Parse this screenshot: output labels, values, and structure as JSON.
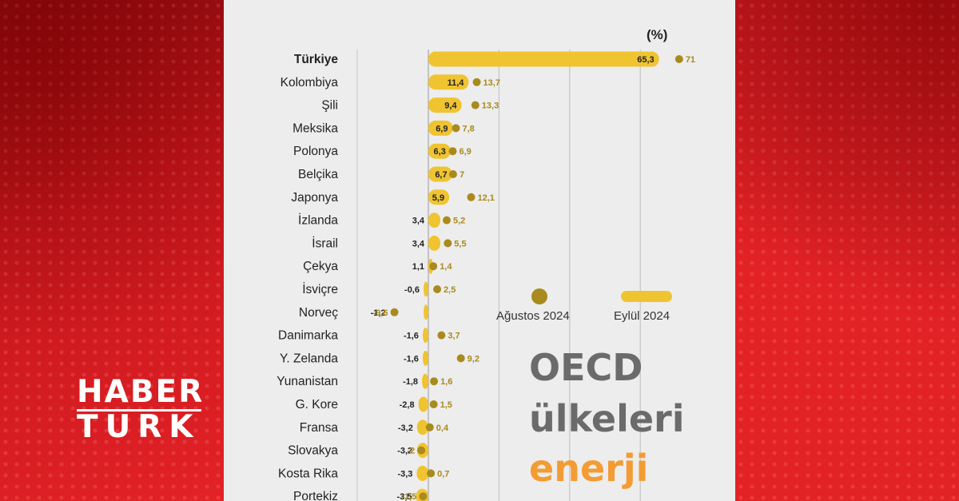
{
  "brand": {
    "line1": "HABER",
    "line2": "TURK"
  },
  "headline": {
    "line1": "OECD",
    "line2": "ülkeleri",
    "line3": "enerji"
  },
  "colors": {
    "bar": "#f0c431",
    "dot": "#a88a1e",
    "accent_title": "#f39c33",
    "title_grey": "#6b6b6b"
  },
  "legend": {
    "dot_label": "Ağustos 2024",
    "bar_label": "Eylül 2024"
  },
  "chart_data": {
    "type": "bar",
    "orientation": "horizontal",
    "unit_label": "(%)",
    "categories": [
      "Türkiye",
      "Kolombiya",
      "Şili",
      "Meksika",
      "Polonya",
      "Belçika",
      "Japonya",
      "İzlanda",
      "İsrail",
      "Çekya",
      "İsviçre",
      "Norveç",
      "Danimarka",
      "Y. Zelanda",
      "Yunanistan",
      "G. Kore",
      "Fransa",
      "Slovakya",
      "Kosta Rika",
      "Portekiz"
    ],
    "series": [
      {
        "name": "Eylül 2024",
        "mark": "bar",
        "values": [
          65.3,
          11.4,
          9.4,
          6.9,
          6.3,
          6.7,
          5.9,
          3.4,
          3.4,
          1.1,
          -0.6,
          -1.2,
          -1.6,
          -1.6,
          -1.8,
          -2.8,
          -3.2,
          -3.2,
          -3.3,
          -3.5
        ]
      },
      {
        "name": "Ağustos 2024",
        "mark": "dot",
        "values": [
          71,
          13.7,
          13.3,
          7.8,
          6.9,
          7,
          12.1,
          5.2,
          5.5,
          1.4,
          2.5,
          -9.6,
          3.7,
          9.2,
          1.6,
          1.5,
          0.4,
          -2,
          0.7,
          -1.5
        ]
      }
    ],
    "bar_labels": [
      "65,3",
      "11,4",
      "9,4",
      "6,9",
      "6,3",
      "6,7",
      "5,9",
      "3,4",
      "3,4",
      "1,1",
      "-0,6",
      "-1,2",
      "-1,6",
      "-1,6",
      "-1,8",
      "-2,8",
      "-3,2",
      "-3,2",
      "-3,3",
      "-3,5"
    ],
    "dot_labels": [
      "71",
      "13,7",
      "13,3",
      "7,8",
      "6,9",
      "7",
      "12,1",
      "5,2",
      "5,5",
      "1,4",
      "2,5",
      "-9,6",
      "3,7",
      "9,2",
      "1,6",
      "1,5",
      "0,4",
      "-2",
      "0,7",
      "-1,5"
    ],
    "gridlines": [
      0,
      20,
      40,
      60
    ],
    "highlight_category": "Türkiye"
  }
}
